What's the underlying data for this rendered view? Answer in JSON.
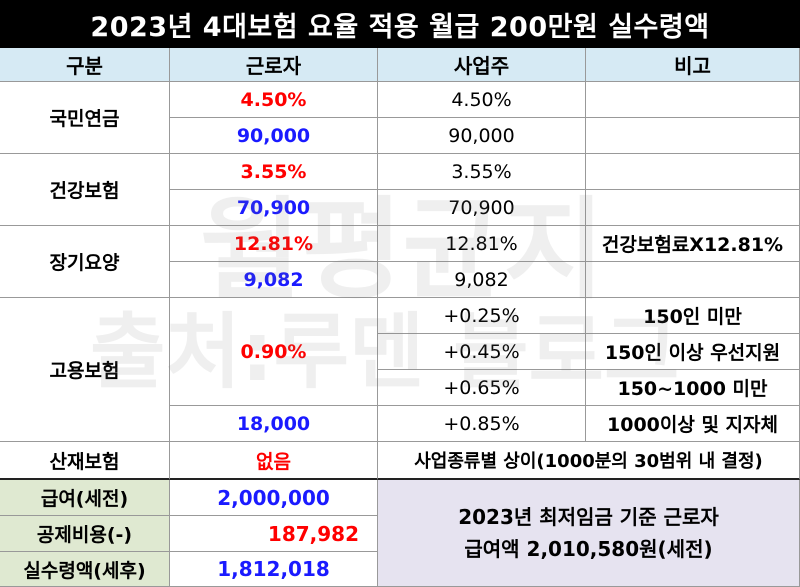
{
  "title": "2023년 4대보험 요율 적용 월급 200만원 실수령액",
  "headers": [
    "구분",
    "근로자",
    "사업주",
    "비고"
  ],
  "pension": {
    "label": "국민연금",
    "worker_rate": "4.50%",
    "employer_rate": "4.50%",
    "worker_amount": "90,000",
    "employer_amount": "90,000"
  },
  "health": {
    "label": "건강보험",
    "worker_rate": "3.55%",
    "employer_rate": "3.55%",
    "worker_amount": "70,900",
    "employer_amount": "70,900"
  },
  "longterm": {
    "label": "장기요양",
    "worker_rate": "12.81%",
    "employer_rate": "12.81%",
    "note": "건강보험료X12.81%",
    "worker_amount": "9,082",
    "employer_amount": "9,082"
  },
  "employment": {
    "label": "고용보험",
    "worker_rate": "0.90%",
    "worker_amount": "18,000",
    "rows": [
      {
        "employer": "+0.25%",
        "note": "150인 미만"
      },
      {
        "employer": "+0.45%",
        "note": "150인 이상 우선지원"
      },
      {
        "employer": "+0.65%",
        "note": "150~1000 미만"
      },
      {
        "employer": "+0.85%",
        "note": "1000이상 및 지자체"
      }
    ]
  },
  "industrial": {
    "label": "산재보험",
    "worker": "없음",
    "note": "사업종류별 상이(1000분의 30범위 내 결정)"
  },
  "summary": {
    "gross_label": "급여(세전)",
    "gross_value": "2,000,000",
    "deduction_label": "공제비용(-)",
    "deduction_value": "187,982",
    "net_label": "실수령액(세후)",
    "net_value": "1,812,018"
  },
  "footnote": {
    "line1": "2023년 최저임금 기준 근로자",
    "line2": "급여액 2,010,580원(세전)"
  },
  "watermark": {
    "line1": "월평균지",
    "line2": "출처:루멘 블로그"
  },
  "colors": {
    "header_bg": "#d6eaf4",
    "summary_bg": "#dfe9d1",
    "note_bg": "#e6e3f0",
    "rate_red": "#ff0000",
    "amount_blue": "#1a1aff"
  }
}
